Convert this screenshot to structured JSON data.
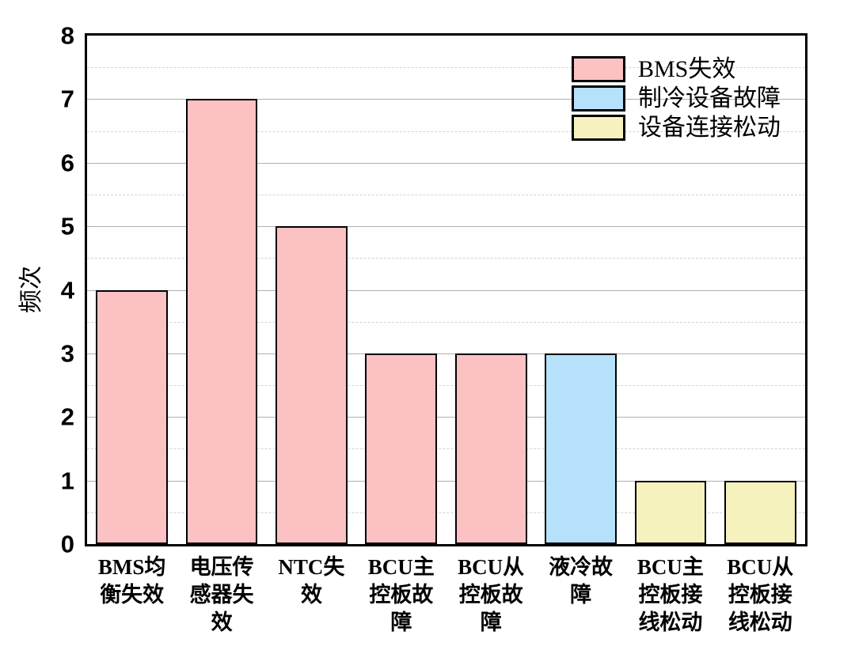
{
  "chart_data": {
    "type": "bar",
    "title": "",
    "xlabel": "",
    "ylabel": "频次",
    "ylim": [
      0,
      8
    ],
    "yticks": [
      0,
      1,
      2,
      3,
      4,
      5,
      6,
      7,
      8
    ],
    "minor_grid_step": 0.5,
    "grid": "horizontal: solid major lines at integers, dashed minor lines at halves",
    "legend_position": "top-right, no frame",
    "categories": [
      "BMS均衡失效",
      "电压传感器失效",
      "NTC失效",
      "BCU主控板故障",
      "BCU从控板故障",
      "液冷故障",
      "BCU主控板接线松动",
      "BCU从控板接线松动"
    ],
    "category_label_lines": [
      "BMS均\n衡失效",
      "电压传\n感器失\n效",
      "NTC失\n效",
      "BCU主\n控板故\n障",
      "BCU从\n控板故\n障",
      "液冷故\n障",
      "BCU主\n控板接\n线松动",
      "BCU从\n控板接\n线松动"
    ],
    "values": [
      4,
      7,
      5,
      3,
      3,
      3,
      1,
      1
    ],
    "bar_group_index": [
      0,
      0,
      0,
      0,
      0,
      1,
      2,
      2
    ],
    "legend": [
      {
        "label": "BMS失效",
        "color": "#fcc2c3"
      },
      {
        "label": "制冷设备故障",
        "color": "#b5e2fa"
      },
      {
        "label": "设备连接松动",
        "color": "#f5f2be"
      }
    ],
    "colors": {
      "bar_border": "#000000",
      "axis_frame": "#000000",
      "major_grid": "#b0b0b0",
      "minor_grid": "#d4d4d4",
      "background": "#ffffff",
      "text": "#000000"
    }
  }
}
